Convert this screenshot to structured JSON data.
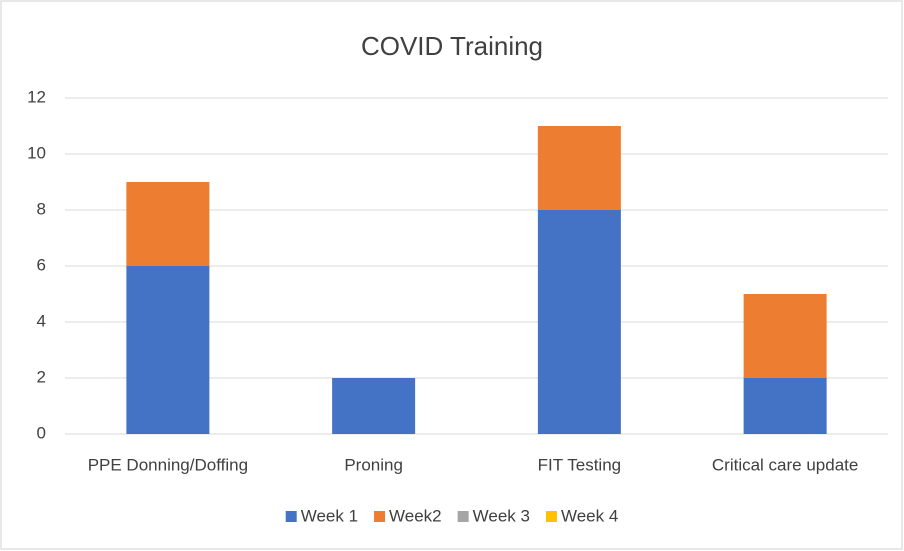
{
  "chart_data": {
    "type": "stacked_bar",
    "title": "COVID Training",
    "categories": [
      "PPE Donning/Doffing",
      "Proning",
      "FIT Testing",
      "Critical care update"
    ],
    "series": [
      {
        "name": "Week 1",
        "color": "#4472c4",
        "values": [
          6,
          2,
          8,
          2
        ]
      },
      {
        "name": "Week2",
        "color": "#ed7d31",
        "values": [
          3,
          0,
          3,
          3
        ]
      },
      {
        "name": "Week 3",
        "color": "#a5a5a5",
        "values": [
          0,
          0,
          0,
          0
        ]
      },
      {
        "name": "Week 4",
        "color": "#ffc000",
        "values": [
          0,
          0,
          0,
          0
        ]
      }
    ],
    "ylim": [
      0,
      12
    ],
    "yticks": [
      0,
      2,
      4,
      6,
      8,
      10,
      12
    ],
    "grid": true,
    "legend": "bottom"
  }
}
